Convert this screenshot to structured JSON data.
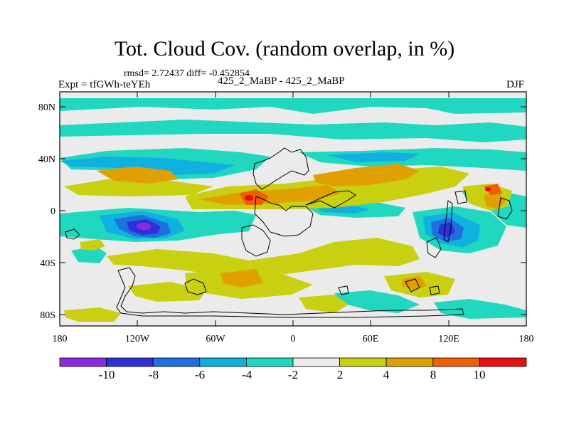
{
  "title": "Tot. Cloud Cov. (random overlap, in %)",
  "stats": "rmsd= 2.72437 diff= -0.452854",
  "experiment": "Expt = tfGWh-teYEh",
  "difference_label": "425_2_MaBP - 425_2_MaBP",
  "season": "DJF",
  "lat_ticks": [
    "80N",
    "40N",
    "0",
    "40S",
    "80S"
  ],
  "lon_ticks": [
    "180",
    "120W",
    "60W",
    "0",
    "60E",
    "120E",
    "180"
  ],
  "colorbar": {
    "labels": [
      "-10",
      "-8",
      "-6",
      "-4",
      "-2",
      "2",
      "4",
      "8",
      "10"
    ],
    "colors": [
      "#8a2be2",
      "#3030d8",
      "#1e6fe0",
      "#10b0e0",
      "#20d8c0",
      "#ebebeb",
      "#c8d010",
      "#e0a000",
      "#f06000",
      "#e81010"
    ]
  }
}
